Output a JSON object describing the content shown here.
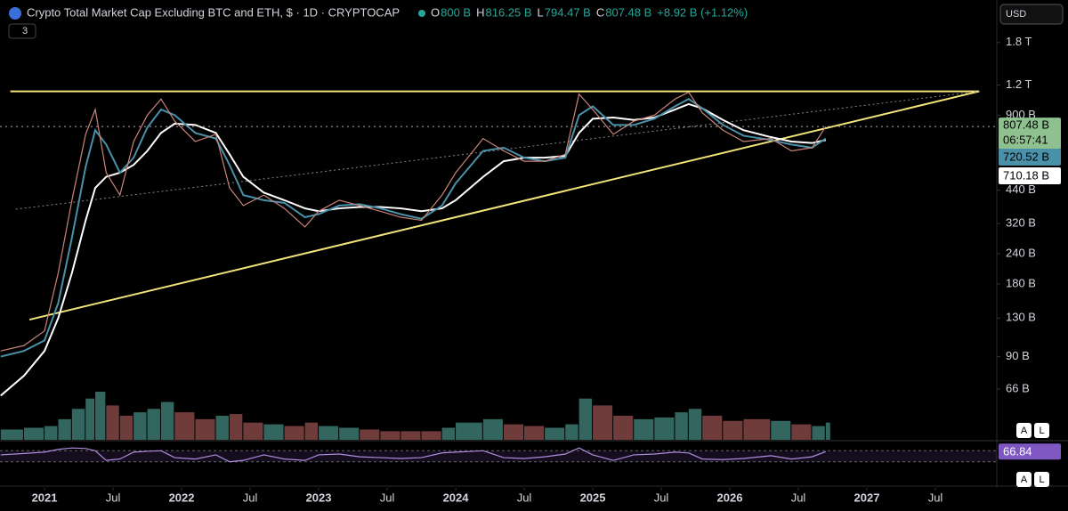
{
  "chart_data": {
    "type": "line",
    "title": "Crypto Total Market Cap Excluding BTC and ETH, $ · 1D · CRYPTOCAP",
    "ohlc": [
      {
        "key": "O",
        "text": "800 B"
      },
      {
        "key": "H",
        "text": "816.25 B"
      },
      {
        "key": "L",
        "text": "794.47 B"
      },
      {
        "key": "C",
        "text": "807.48 B"
      }
    ],
    "change": "+8.92 B (+1.12%)",
    "indicator_count": "3",
    "currency": "USD",
    "scale_buttons": [
      "A",
      "L"
    ],
    "log_scale": true,
    "xlim": [
      2020.675,
      2027.948
    ],
    "xticks": [
      2021,
      {
        "value": 2021.5,
        "label": "Jul"
      },
      2022,
      {
        "value": 2022.5,
        "label": "Jul"
      },
      2023,
      {
        "value": 2023.5,
        "label": "Jul"
      },
      2024,
      {
        "value": 2024.5,
        "label": "Jul"
      },
      2025,
      {
        "value": 2025.5,
        "label": "Jul"
      },
      2026,
      {
        "value": 2026.5,
        "label": "Jul"
      },
      2027,
      {
        "value": 2027.5,
        "label": "Jul"
      }
    ],
    "ylim": [
      40.7,
      2700
    ],
    "yticks": [
      {
        "value": 1800,
        "label": "1.8 T"
      },
      {
        "value": 1200,
        "label": "1.2 T"
      },
      {
        "value": 900,
        "label": "900 B"
      },
      {
        "value": 440,
        "label": "440 B"
      },
      {
        "value": 320,
        "label": "320 B"
      },
      {
        "value": 240,
        "label": "240 B"
      },
      {
        "value": 180,
        "label": "180 B"
      },
      {
        "value": 130,
        "label": "130 B"
      },
      {
        "value": 90,
        "label": "90 B"
      },
      {
        "value": 66,
        "label": "66 B"
      }
    ],
    "x": [
      2020.68,
      2020.85,
      2021.0,
      2021.1,
      2021.2,
      2021.3,
      2021.37,
      2021.45,
      2021.55,
      2021.65,
      2021.75,
      2021.85,
      2021.95,
      2022.1,
      2022.25,
      2022.35,
      2022.45,
      2022.6,
      2022.75,
      2022.9,
      2023.0,
      2023.15,
      2023.3,
      2023.45,
      2023.6,
      2023.75,
      2023.9,
      2024.0,
      2024.2,
      2024.35,
      2024.5,
      2024.65,
      2024.8,
      2024.9,
      2025.0,
      2025.15,
      2025.3,
      2025.45,
      2025.6,
      2025.7,
      2025.8,
      2025.95,
      2026.1,
      2026.3,
      2026.45,
      2026.6,
      2026.7
    ],
    "series": [
      {
        "color": "#c9847a",
        "values": [
          95,
          100,
          115,
          200,
          400,
          750,
          950,
          520,
          420,
          700,
          900,
          1050,
          850,
          700,
          750,
          450,
          380,
          420,
          370,
          310,
          360,
          400,
          380,
          360,
          340,
          330,
          420,
          520,
          720,
          640,
          580,
          580,
          620,
          1100,
          950,
          750,
          850,
          900,
          1050,
          1120,
          920,
          780,
          700,
          720,
          640,
          660,
          807.48
        ]
      },
      {
        "color": "#4a90a8",
        "values": [
          90,
          95,
          105,
          150,
          280,
          550,
          780,
          680,
          520,
          600,
          800,
          950,
          900,
          760,
          720,
          560,
          420,
          400,
          390,
          340,
          350,
          380,
          385,
          370,
          350,
          335,
          380,
          470,
          640,
          660,
          600,
          580,
          600,
          900,
          980,
          820,
          820,
          870,
          980,
          1050,
          960,
          820,
          740,
          710,
          680,
          660,
          720.52
        ]
      },
      {
        "color": "#ffffff",
        "values": [
          62,
          75,
          95,
          130,
          200,
          330,
          450,
          500,
          520,
          560,
          640,
          760,
          830,
          820,
          760,
          620,
          500,
          430,
          400,
          370,
          360,
          370,
          375,
          375,
          370,
          360,
          370,
          400,
          500,
          580,
          600,
          600,
          610,
          760,
          870,
          880,
          860,
          880,
          950,
          1000,
          960,
          860,
          780,
          730,
          700,
          690,
          710.18
        ]
      }
    ],
    "price_labels": [
      {
        "value": 807.48,
        "label": "807.48 B",
        "color": "#8fc08f"
      },
      {
        "value": 720.52,
        "label": "720.52 B",
        "color": "#4a90a8"
      },
      {
        "value": 710.18,
        "label": "710.18 B",
        "color": "#ffffff"
      }
    ],
    "countdown": "06:57:41",
    "trendlines": [
      {
        "x": [
          2020.75,
          2027.82
        ],
        "y": [
          1130,
          1130
        ],
        "color": "#f2e47a",
        "style": "solid"
      },
      {
        "x": [
          2020.89,
          2027.82
        ],
        "y": [
          128,
          1130
        ],
        "color": "#f2e47a",
        "style": "solid"
      },
      {
        "x": [
          2020.79,
          2027.82
        ],
        "y": [
          367,
          1130
        ],
        "color": "#888888",
        "style": "dotted"
      }
    ],
    "volume": {
      "vlim": [
        0,
        1280
      ],
      "colors": [
        "#3f7f76",
        "#8c4a4a"
      ],
      "values": [
        30,
        35,
        40,
        60,
        90,
        120,
        140,
        100,
        70,
        80,
        90,
        110,
        80,
        60,
        70,
        75,
        50,
        45,
        40,
        50,
        40,
        35,
        30,
        25,
        25,
        25,
        35,
        50,
        60,
        45,
        40,
        35,
        45,
        120,
        100,
        70,
        60,
        65,
        80,
        90,
        70,
        55,
        60,
        55,
        45,
        40,
        50
      ]
    },
    "rsi": {
      "lim": [
        0,
        100
      ],
      "band": [
        30,
        70
      ],
      "color": "#b08ce0",
      "label": "66.84",
      "values": [
        55,
        60,
        65,
        75,
        80,
        78,
        70,
        35,
        40,
        65,
        68,
        70,
        45,
        40,
        55,
        30,
        35,
        55,
        40,
        35,
        55,
        58,
        48,
        45,
        42,
        45,
        62,
        65,
        70,
        45,
        42,
        48,
        58,
        80,
        55,
        35,
        55,
        58,
        65,
        62,
        40,
        38,
        42,
        52,
        40,
        48,
        66.84
      ]
    }
  }
}
